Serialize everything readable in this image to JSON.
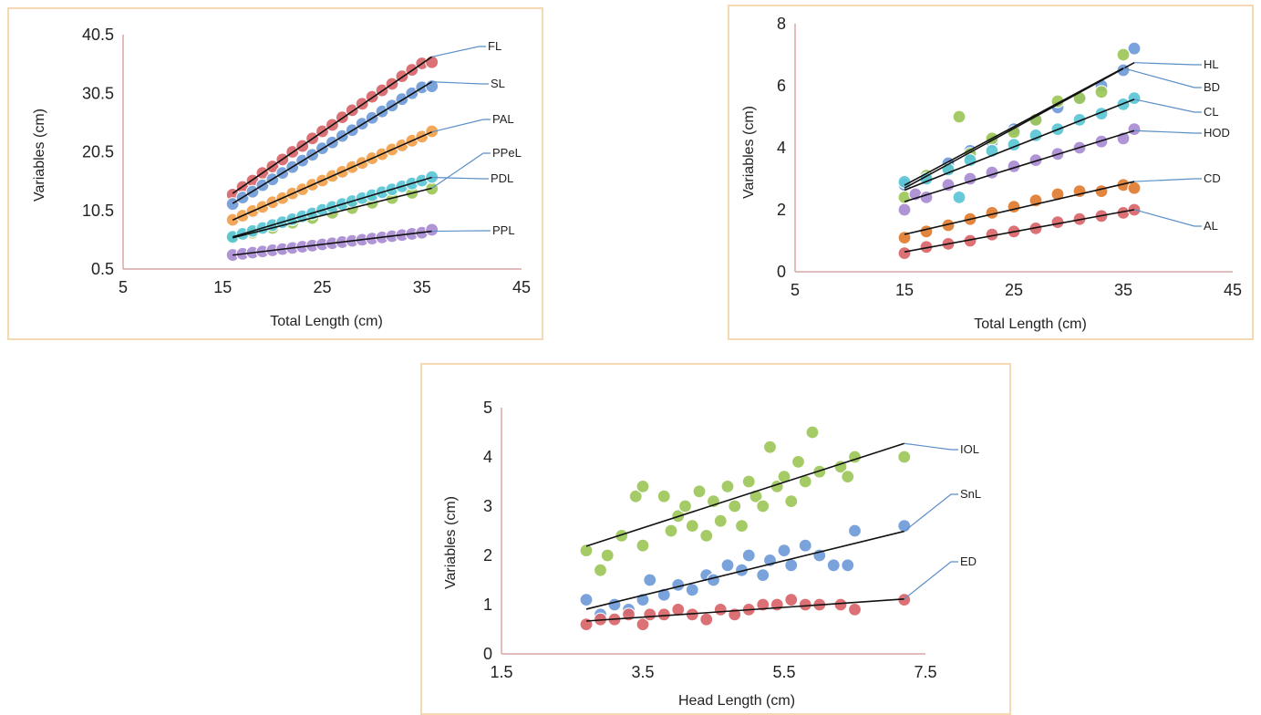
{
  "chart_data": [
    {
      "type": "scatter",
      "xlabel": "Total Length (cm)",
      "ylabel": "Variables (cm)",
      "xlim": [
        5,
        45
      ],
      "ylim": [
        0.5,
        40.5
      ],
      "x_ticks": [
        "5",
        "15",
        "25",
        "35",
        "45"
      ],
      "y_ticks": [
        "0.5",
        "10.5",
        "20.5",
        "30.5",
        "40.5"
      ],
      "trendlines": true,
      "series": [
        {
          "name": "FL",
          "color": "#d9656a",
          "x": [
            16,
            17,
            18,
            19,
            20,
            21,
            22,
            23,
            24,
            25,
            26,
            27,
            28,
            29,
            30,
            31,
            32,
            33,
            34,
            35,
            36
          ],
          "y": [
            13.2,
            14.5,
            15.6,
            16.9,
            18.0,
            19.2,
            20.5,
            21.5,
            22.8,
            24.0,
            25.1,
            26.4,
            27.6,
            28.7,
            29.9,
            31.0,
            32.1,
            33.4,
            34.5,
            35.6,
            35.8
          ]
        },
        {
          "name": "SL",
          "color": "#6f9bd8",
          "x": [
            16,
            17,
            18,
            19,
            20,
            21,
            22,
            23,
            24,
            25,
            26,
            27,
            28,
            29,
            30,
            31,
            32,
            33,
            34,
            35,
            36
          ],
          "y": [
            11.6,
            12.7,
            13.7,
            14.8,
            15.8,
            16.9,
            17.9,
            19.0,
            20.0,
            21.1,
            22.1,
            23.2,
            24.2,
            25.3,
            26.3,
            27.4,
            28.4,
            29.5,
            30.5,
            31.5,
            31.7
          ]
        },
        {
          "name": "PAL",
          "color": "#f3a04c",
          "x": [
            16,
            17,
            18,
            19,
            20,
            21,
            22,
            23,
            24,
            25,
            26,
            27,
            28,
            29,
            30,
            31,
            32,
            33,
            34,
            35,
            36
          ],
          "y": [
            8.9,
            9.6,
            10.4,
            11.1,
            11.9,
            12.6,
            13.4,
            14.1,
            14.9,
            15.6,
            16.4,
            17.1,
            17.9,
            18.6,
            19.4,
            20.1,
            20.9,
            21.6,
            22.4,
            23.1,
            24.0
          ]
        },
        {
          "name": "PPeL",
          "color": "#9dc75a",
          "x": [
            16,
            18,
            20,
            22,
            24,
            26,
            28,
            30,
            32,
            34,
            36
          ],
          "y": [
            5.8,
            6.7,
            7.5,
            8.4,
            9.2,
            10.1,
            10.9,
            11.8,
            12.6,
            13.5,
            14.2
          ]
        },
        {
          "name": "PDL",
          "color": "#5bc6d6",
          "x": [
            16,
            17,
            18,
            19,
            20,
            21,
            22,
            23,
            24,
            25,
            26,
            27,
            28,
            29,
            30,
            31,
            32,
            33,
            34,
            35,
            36
          ],
          "y": [
            6.0,
            6.5,
            7.0,
            7.5,
            8.0,
            8.5,
            9.0,
            9.5,
            10.0,
            10.6,
            11.1,
            11.6,
            12.1,
            12.6,
            13.1,
            13.6,
            14.1,
            14.6,
            15.1,
            15.6,
            16.2
          ]
        },
        {
          "name": "PPL",
          "color": "#a98bd3",
          "x": [
            16,
            17,
            18,
            19,
            20,
            21,
            22,
            23,
            24,
            25,
            26,
            27,
            28,
            29,
            30,
            31,
            32,
            33,
            34,
            35,
            36
          ],
          "y": [
            2.9,
            3.1,
            3.3,
            3.5,
            3.7,
            3.9,
            4.1,
            4.3,
            4.5,
            4.7,
            4.9,
            5.1,
            5.3,
            5.5,
            5.7,
            5.9,
            6.1,
            6.3,
            6.5,
            6.7,
            7.2
          ]
        }
      ],
      "callouts": [
        "FL",
        "SL",
        "PAL",
        "PPeL",
        "PDL",
        "PPL"
      ]
    },
    {
      "type": "scatter",
      "xlabel": "Total Length (cm)",
      "ylabel": "Variables (cm)",
      "xlim": [
        5,
        45
      ],
      "ylim": [
        0,
        8
      ],
      "x_ticks": [
        "5",
        "15",
        "25",
        "35",
        "45"
      ],
      "y_ticks": [
        "0",
        "2",
        "4",
        "6",
        "8"
      ],
      "trendlines": true,
      "series": [
        {
          "name": "HL",
          "color": "#6f9bd8",
          "x": [
            15,
            17,
            19,
            21,
            23,
            25,
            27,
            29,
            31,
            33,
            35,
            36
          ],
          "y": [
            2.8,
            3.1,
            3.5,
            3.9,
            4.2,
            4.6,
            4.9,
            5.3,
            5.6,
            6.0,
            6.5,
            7.2
          ]
        },
        {
          "name": "BD",
          "color": "#9dc75a",
          "x": [
            15,
            17,
            19,
            20,
            21,
            23,
            25,
            27,
            29,
            31,
            33,
            35
          ],
          "y": [
            2.4,
            3.1,
            3.3,
            5.0,
            3.8,
            4.3,
            4.5,
            4.9,
            5.5,
            5.6,
            5.8,
            7.0
          ]
        },
        {
          "name": "CL",
          "color": "#5bc6d6",
          "x": [
            15,
            17,
            19,
            20,
            21,
            23,
            25,
            27,
            29,
            31,
            33,
            35,
            36
          ],
          "y": [
            2.9,
            3.0,
            3.3,
            2.4,
            3.6,
            3.9,
            4.1,
            4.4,
            4.6,
            4.9,
            5.1,
            5.4,
            5.6
          ]
        },
        {
          "name": "HOD",
          "color": "#a98bd3",
          "x": [
            15,
            16,
            17,
            19,
            21,
            23,
            25,
            27,
            29,
            31,
            33,
            35,
            36
          ],
          "y": [
            2.0,
            2.5,
            2.4,
            2.8,
            3.0,
            3.2,
            3.4,
            3.6,
            3.8,
            4.0,
            4.2,
            4.3,
            4.6
          ]
        },
        {
          "name": "CD",
          "color": "#e07b2f",
          "x": [
            15,
            17,
            19,
            21,
            23,
            25,
            27,
            29,
            31,
            33,
            35,
            36
          ],
          "y": [
            1.1,
            1.3,
            1.5,
            1.7,
            1.9,
            2.1,
            2.3,
            2.5,
            2.6,
            2.6,
            2.8,
            2.7
          ]
        },
        {
          "name": "AL",
          "color": "#d9656a",
          "x": [
            15,
            17,
            19,
            21,
            23,
            25,
            27,
            29,
            31,
            33,
            35,
            36
          ],
          "y": [
            0.6,
            0.8,
            0.9,
            1.0,
            1.2,
            1.3,
            1.4,
            1.6,
            1.7,
            1.8,
            1.9,
            2.0
          ]
        }
      ],
      "callouts": [
        "HL",
        "BD",
        "CL",
        "HOD",
        "CD",
        "AL"
      ]
    },
    {
      "type": "scatter",
      "xlabel": "Head Length (cm)",
      "ylabel": "Variables (cm)",
      "xlim": [
        1.5,
        7.5
      ],
      "ylim": [
        0,
        5
      ],
      "x_ticks": [
        "1.5",
        "3.5",
        "5.5",
        "7.5"
      ],
      "y_ticks": [
        "0",
        "1",
        "2",
        "3",
        "4",
        "5"
      ],
      "trendlines": true,
      "series": [
        {
          "name": "IOL",
          "color": "#9dc75a",
          "x": [
            2.7,
            2.9,
            3.0,
            3.2,
            3.4,
            3.5,
            3.5,
            3.8,
            3.9,
            4.0,
            4.1,
            4.2,
            4.3,
            4.4,
            4.5,
            4.6,
            4.7,
            4.8,
            4.9,
            5.0,
            5.1,
            5.2,
            5.3,
            5.4,
            5.5,
            5.6,
            5.7,
            5.8,
            5.9,
            6.0,
            6.3,
            6.4,
            6.5,
            7.2
          ],
          "y": [
            2.1,
            1.7,
            2.0,
            2.4,
            3.2,
            3.4,
            2.2,
            3.2,
            2.5,
            2.8,
            3.0,
            2.6,
            3.3,
            2.4,
            3.1,
            2.7,
            3.4,
            3.0,
            2.6,
            3.5,
            3.2,
            3.0,
            4.2,
            3.4,
            3.6,
            3.1,
            3.9,
            3.5,
            4.5,
            3.7,
            3.8,
            3.6,
            4.0,
            4.0
          ]
        },
        {
          "name": "SnL",
          "color": "#6f9bd8",
          "x": [
            2.7,
            2.9,
            3.1,
            3.3,
            3.5,
            3.6,
            3.8,
            4.0,
            4.2,
            4.4,
            4.5,
            4.7,
            4.9,
            5.0,
            5.2,
            5.3,
            5.5,
            5.6,
            5.8,
            6.0,
            6.2,
            6.4,
            6.5,
            7.2
          ],
          "y": [
            1.1,
            0.8,
            1.0,
            0.9,
            1.1,
            1.5,
            1.2,
            1.4,
            1.3,
            1.6,
            1.5,
            1.8,
            1.7,
            2.0,
            1.6,
            1.9,
            2.1,
            1.8,
            2.2,
            2.0,
            1.8,
            1.8,
            2.5,
            2.6
          ]
        },
        {
          "name": "ED",
          "color": "#d9656a",
          "x": [
            2.7,
            2.9,
            3.1,
            3.3,
            3.5,
            3.6,
            3.8,
            4.0,
            4.2,
            4.4,
            4.6,
            4.8,
            5.0,
            5.2,
            5.4,
            5.6,
            5.8,
            6.0,
            6.3,
            6.5,
            7.2
          ],
          "y": [
            0.6,
            0.7,
            0.7,
            0.8,
            0.6,
            0.8,
            0.8,
            0.9,
            0.8,
            0.7,
            0.9,
            0.8,
            0.9,
            1.0,
            1.0,
            1.1,
            1.0,
            1.0,
            1.0,
            0.9,
            1.1
          ]
        }
      ],
      "callouts": [
        "IOL",
        "SnL",
        "ED"
      ]
    }
  ]
}
